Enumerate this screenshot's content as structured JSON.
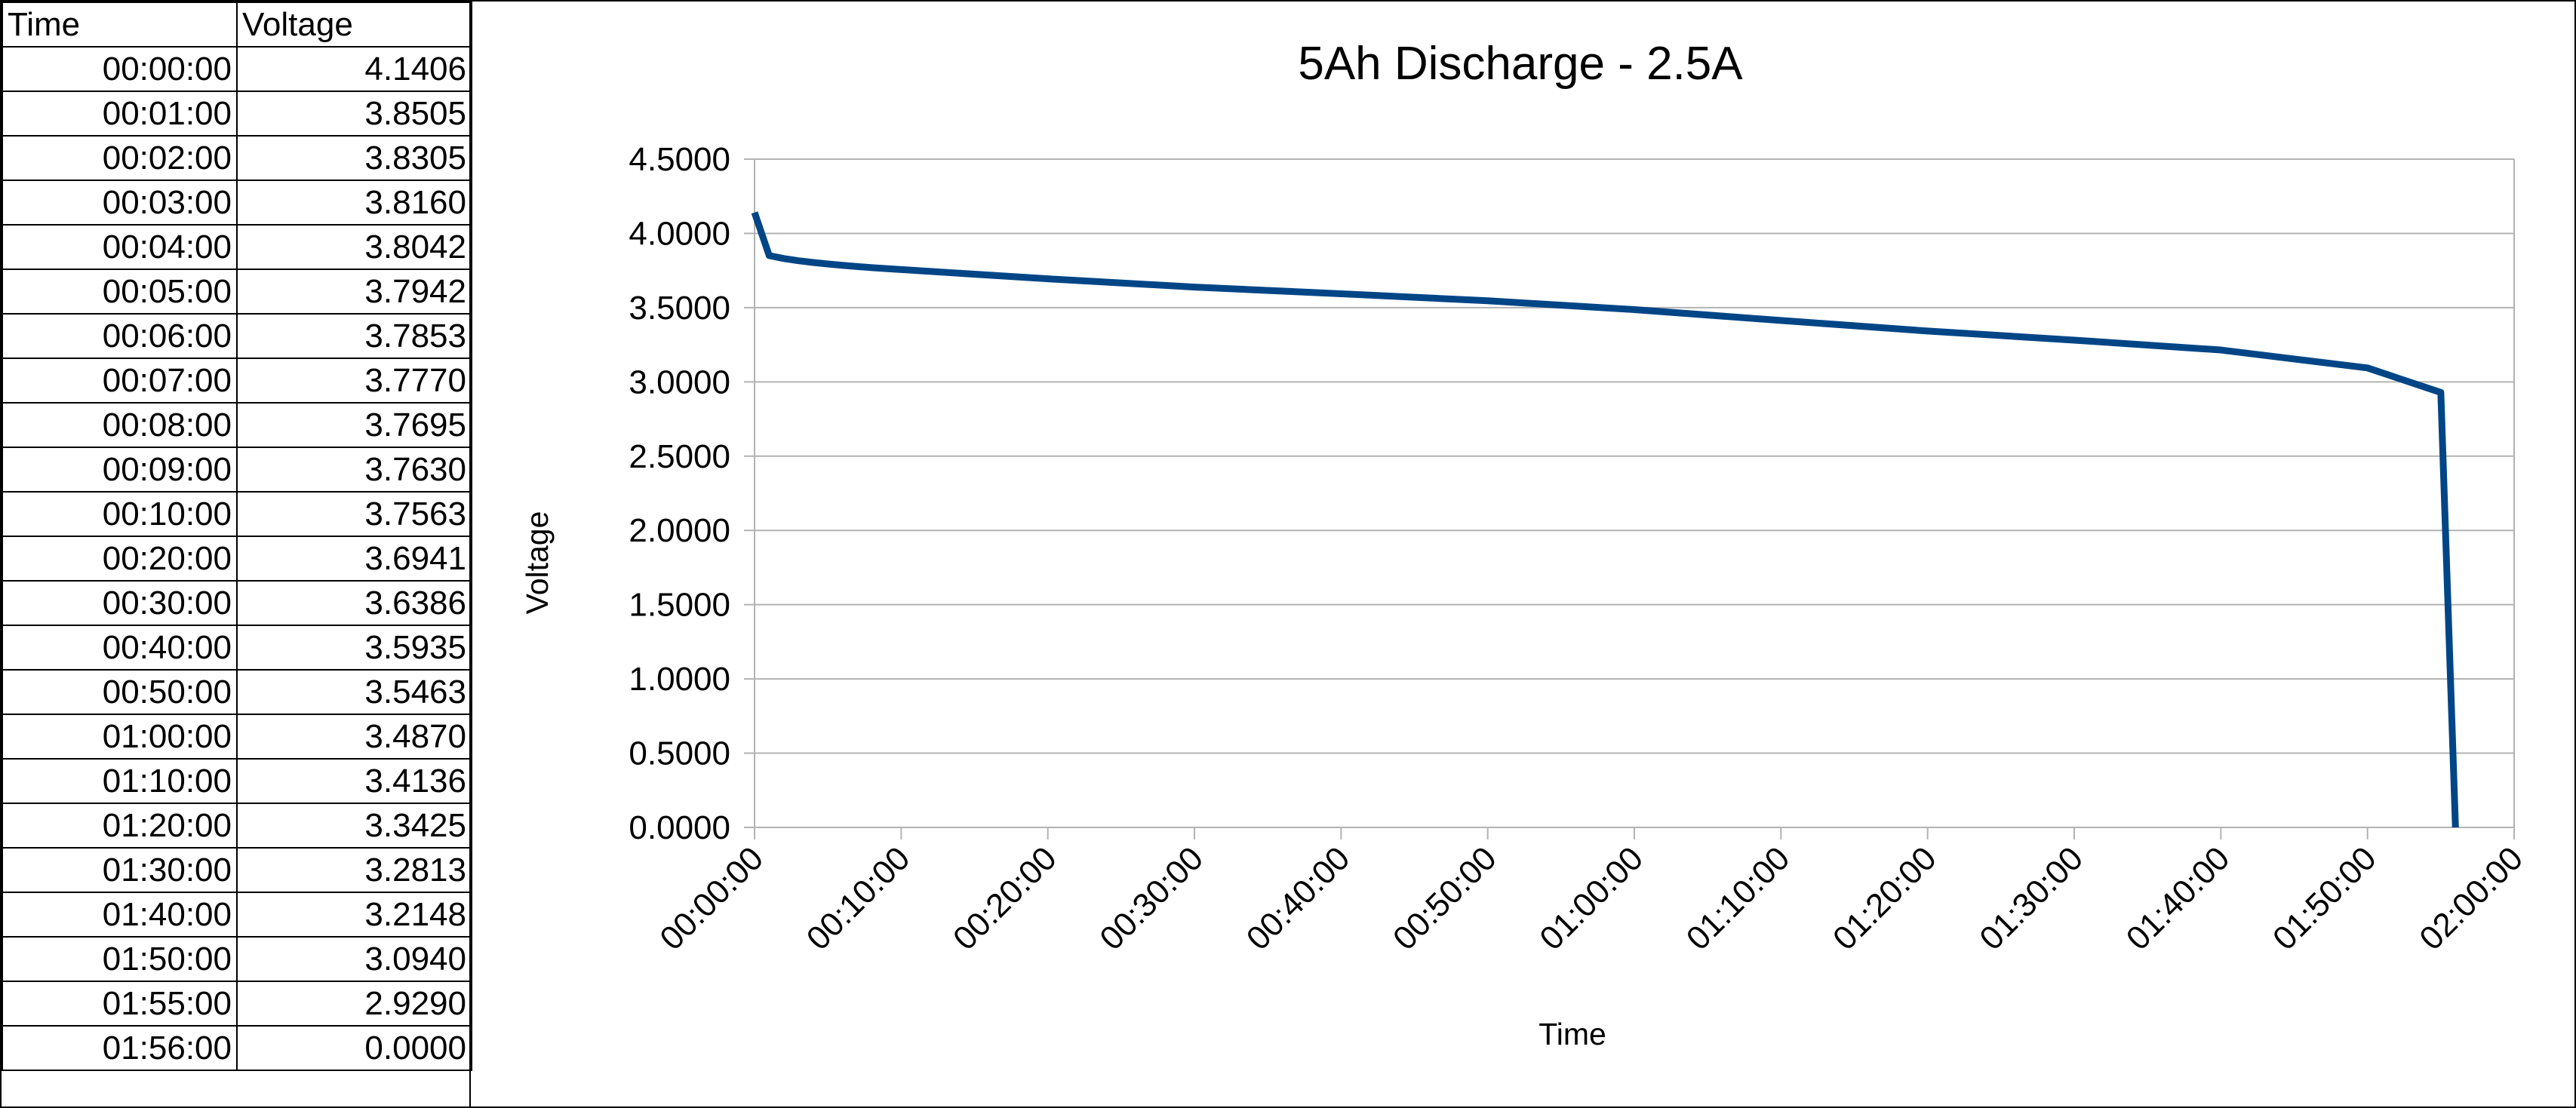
{
  "table": {
    "headers": [
      "Time",
      "Voltage"
    ],
    "rows": [
      [
        "00:00:00",
        "4.1406"
      ],
      [
        "00:01:00",
        "3.8505"
      ],
      [
        "00:02:00",
        "3.8305"
      ],
      [
        "00:03:00",
        "3.8160"
      ],
      [
        "00:04:00",
        "3.8042"
      ],
      [
        "00:05:00",
        "3.7942"
      ],
      [
        "00:06:00",
        "3.7853"
      ],
      [
        "00:07:00",
        "3.7770"
      ],
      [
        "00:08:00",
        "3.7695"
      ],
      [
        "00:09:00",
        "3.7630"
      ],
      [
        "00:10:00",
        "3.7563"
      ],
      [
        "00:20:00",
        "3.6941"
      ],
      [
        "00:30:00",
        "3.6386"
      ],
      [
        "00:40:00",
        "3.5935"
      ],
      [
        "00:50:00",
        "3.5463"
      ],
      [
        "01:00:00",
        "3.4870"
      ],
      [
        "01:10:00",
        "3.4136"
      ],
      [
        "01:20:00",
        "3.3425"
      ],
      [
        "01:30:00",
        "3.2813"
      ],
      [
        "01:40:00",
        "3.2148"
      ],
      [
        "01:50:00",
        "3.0940"
      ],
      [
        "01:55:00",
        "2.9290"
      ],
      [
        "01:56:00",
        "0.0000"
      ]
    ]
  },
  "chart_data": {
    "type": "line",
    "title": "5Ah Discharge - 2.5A",
    "xlabel": "Time",
    "ylabel": "Voltage",
    "x": [
      "00:00:00",
      "00:01:00",
      "00:02:00",
      "00:03:00",
      "00:04:00",
      "00:05:00",
      "00:06:00",
      "00:07:00",
      "00:08:00",
      "00:09:00",
      "00:10:00",
      "00:20:00",
      "00:30:00",
      "00:40:00",
      "00:50:00",
      "01:00:00",
      "01:10:00",
      "01:20:00",
      "01:30:00",
      "01:40:00",
      "01:50:00",
      "01:55:00",
      "01:56:00"
    ],
    "series": [
      {
        "values": [
          4.1406,
          3.8505,
          3.8305,
          3.816,
          3.8042,
          3.7942,
          3.7853,
          3.777,
          3.7695,
          3.763,
          3.7563,
          3.6941,
          3.6386,
          3.5935,
          3.5463,
          3.487,
          3.4136,
          3.3425,
          3.2813,
          3.2148,
          3.094,
          2.929,
          0.0
        ],
        "color": "#004586"
      }
    ],
    "xlim": [
      "00:00:00",
      "02:00:00"
    ],
    "ylim": [
      0,
      4.5
    ],
    "x_ticks": [
      "00:00:00",
      "00:10:00",
      "00:20:00",
      "00:30:00",
      "00:40:00",
      "00:50:00",
      "01:00:00",
      "01:10:00",
      "01:20:00",
      "01:30:00",
      "01:40:00",
      "01:50:00",
      "02:00:00"
    ],
    "y_ticks": [
      "0.0000",
      "0.5000",
      "1.0000",
      "1.5000",
      "2.0000",
      "2.5000",
      "3.0000",
      "3.5000",
      "4.0000",
      "4.5000"
    ],
    "grid": true,
    "gridline_color": "#b3b3b3",
    "legend": "none"
  }
}
